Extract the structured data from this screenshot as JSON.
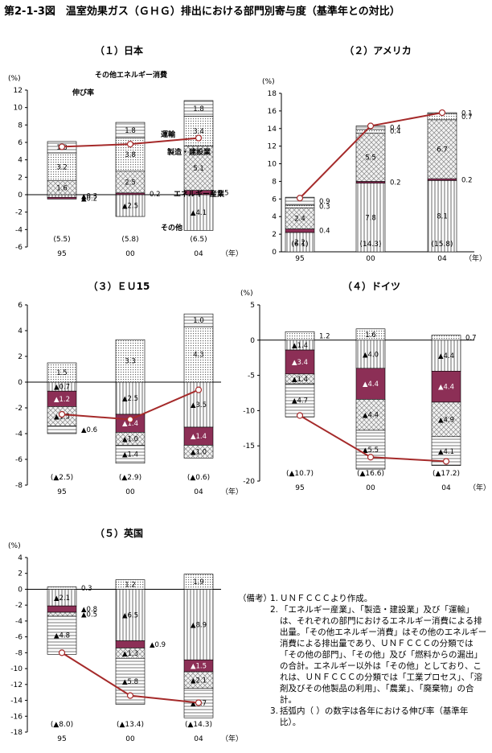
{
  "figure_title": "第2-1-3図　温室効果ガス（ＧＨＧ）排出における部門別寄与度（基準年との対比）",
  "colors": {
    "energy_industry": "#8c2f56",
    "line": "#a52a2a",
    "marker_fill": "#ffffff"
  },
  "legend_labels": [
    "伸び率",
    "その他エネルギー消費",
    "運輸",
    "製造・建設業",
    "エネルギー産業",
    "その他"
  ],
  "notes": {
    "heading": "（備考）",
    "items": [
      "ＵＮＦＣＣＣより作成。",
      "「エネルギー産業」、「製造・建設業」及び「運輸」は、それぞれの部門におけるエネルギー消費による排出量。「その他エネルギー消費」はその他のエネルギー消費による排出量であり、ＵＮＦＣＣＣの分類では「その他の部門」、「その他」及び「燃料からの漏出」の合計。エネルギー以外は「その他」としており、これは、ＵＮＦＣＣＣの分類では「工業プロセス」、「溶剤及びその他製品の利用」、「農業」、「廃棄物」の合計。",
      "括弧内（ ）の数字は各年における伸び率（基準年比）。"
    ]
  },
  "chart_data": [
    {
      "title": "（１）日本",
      "type": "bar",
      "categories": [
        "95",
        "00",
        "04"
      ],
      "year_label": "（年）",
      "y_unit": "(%)",
      "ylim": [
        -6,
        12
      ],
      "yticks": [
        -6,
        -4,
        -2,
        0,
        2,
        4,
        6,
        8,
        10,
        12
      ],
      "series": [
        {
          "name": "その他",
          "values": [
            -0.3,
            -2.5,
            -4.1
          ],
          "labels": [
            "▲0.3",
            "▲2.5",
            "▲4.1"
          ]
        },
        {
          "name": "エネルギー産業",
          "values": [
            -0.2,
            0.2,
            0.5
          ],
          "labels": [
            "▲0.2",
            "0.2",
            "0.5"
          ]
        },
        {
          "name": "製造・建設業",
          "values": [
            1.6,
            2.5,
            5.1
          ],
          "labels": [
            "1.6",
            "2.5",
            "5.1"
          ]
        },
        {
          "name": "運輸",
          "values": [
            3.2,
            3.8,
            3.4
          ],
          "labels": [
            "3.2",
            "3.8",
            "3.4"
          ]
        },
        {
          "name": "その他エネルギー消費",
          "values": [
            1.3,
            1.8,
            1.8
          ],
          "labels": [
            "1.3",
            "1.8",
            "1.8"
          ]
        }
      ],
      "growth": {
        "name": "伸び率",
        "values": [
          5.5,
          5.8,
          6.5
        ],
        "labels": [
          "(5.5)",
          "(5.8)",
          "(6.5)"
        ]
      }
    },
    {
      "title": "（２）アメリカ",
      "type": "bar",
      "categories": [
        "95",
        "00",
        "04"
      ],
      "year_label": "（年）",
      "y_unit": "(%)",
      "ylim": [
        0,
        18
      ],
      "yticks": [
        0,
        2,
        4,
        6,
        8,
        10,
        12,
        14,
        16,
        18
      ],
      "series": [
        {
          "name": "その他",
          "values": [
            2.2,
            7.8,
            8.1
          ],
          "labels": [
            "2.2",
            "7.8",
            "8.1"
          ]
        },
        {
          "name": "エネルギー産業",
          "values": [
            0.4,
            0.2,
            0.2
          ],
          "labels": [
            "0.4",
            "0.2",
            "0.2"
          ]
        },
        {
          "name": "製造・建設業",
          "values": [
            2.4,
            5.5,
            6.7
          ],
          "labels": [
            "2.4",
            "5.5",
            "6.7"
          ]
        },
        {
          "name": "運輸",
          "values": [
            0.3,
            0.4,
            0.7
          ],
          "labels": [
            "0.3",
            "0.4",
            "0.7"
          ]
        },
        {
          "name": "その他エネルギー消費",
          "values": [
            0.9,
            0.4,
            0.1
          ],
          "labels": [
            "0.9",
            "0.4",
            "0.1"
          ]
        }
      ],
      "growth": {
        "name": "伸び率",
        "values": [
          6.1,
          14.3,
          15.8
        ],
        "labels": [
          "(6.1)",
          "(14.3)",
          "(15.8)"
        ]
      }
    },
    {
      "title": "（３）ＥＵ15",
      "type": "bar",
      "categories": [
        "95",
        "00",
        "04"
      ],
      "year_label": "（年）",
      "y_unit": "",
      "ylim": [
        -8,
        6
      ],
      "yticks": [
        -8,
        -6,
        -4,
        -2,
        0,
        2,
        4,
        6
      ],
      "series": [
        {
          "name": "その他",
          "values": [
            -0.7,
            -2.5,
            -3.5
          ],
          "labels": [
            "▲0.7",
            "▲2.5",
            "▲3.5"
          ]
        },
        {
          "name": "エネルギー産業",
          "values": [
            -1.2,
            -1.4,
            -1.4
          ],
          "labels": [
            "▲1.2",
            "▲1.4",
            "▲1.4"
          ]
        },
        {
          "name": "製造・建設業",
          "values": [
            -1.5,
            -1.0,
            -1.0
          ],
          "labels": [
            "▲1.5",
            "▲1.0",
            "▲1.0"
          ]
        },
        {
          "name": "運輸",
          "values": [
            1.5,
            3.3,
            4.3
          ],
          "labels": [
            "1.5",
            "3.3",
            "4.3"
          ]
        },
        {
          "name": "その他エネルギー消費",
          "values": [
            -0.6,
            -1.4,
            1.0
          ],
          "labels": [
            "▲0.6",
            "▲1.4",
            "1.0"
          ]
        }
      ],
      "growth": {
        "name": "伸び率",
        "values": [
          -2.5,
          -2.9,
          -0.6
        ],
        "labels": [
          "(▲2.5)",
          "(▲2.9)",
          "(▲0.6)"
        ]
      }
    },
    {
      "title": "（４）ドイツ",
      "type": "bar",
      "categories": [
        "95",
        "00",
        "04"
      ],
      "year_label": "（年）",
      "y_unit": "(%)",
      "ylim": [
        -20,
        5
      ],
      "yticks": [
        -20,
        -15,
        -10,
        -5,
        0,
        5
      ],
      "series": [
        {
          "name": "その他",
          "values": [
            -1.4,
            -4.0,
            -4.4
          ],
          "labels": [
            "▲1.4",
            "▲4.0",
            "▲4.4"
          ]
        },
        {
          "name": "エネルギー産業",
          "values": [
            -3.4,
            -4.4,
            -4.4
          ],
          "labels": [
            "▲3.4",
            "▲4.4",
            "▲4.4"
          ]
        },
        {
          "name": "製造・建設業",
          "values": [
            -1.4,
            -4.4,
            -4.9
          ],
          "labels": [
            "▲1.4",
            "▲4.4",
            "▲4.9"
          ]
        },
        {
          "name": "運輸",
          "values": [
            1.2,
            1.6,
            0.7
          ],
          "labels": [
            "1.2",
            "1.6",
            "0.7"
          ]
        },
        {
          "name": "その他エネルギー消費",
          "values": [
            -4.7,
            -5.5,
            -4.1
          ],
          "labels": [
            "▲4.7",
            "▲5.5",
            "▲4.1"
          ]
        }
      ],
      "growth": {
        "name": "伸び率",
        "values": [
          -10.7,
          -16.6,
          -17.2
        ],
        "labels": [
          "(▲10.7)",
          "(▲16.6)",
          "(▲17.2)"
        ]
      }
    },
    {
      "title": "（５）英国",
      "type": "bar",
      "categories": [
        "95",
        "00",
        "04"
      ],
      "year_label": "（年）",
      "y_unit": "(%)",
      "ylim": [
        -18,
        4
      ],
      "yticks": [
        -18,
        -16,
        -14,
        -12,
        -10,
        -8,
        -6,
        -4,
        -2,
        0,
        2,
        4
      ],
      "series": [
        {
          "name": "その他",
          "values": [
            -2.1,
            -6.5,
            -8.9
          ],
          "labels": [
            "▲2.1",
            "▲6.5",
            "▲8.9"
          ]
        },
        {
          "name": "エネルギー産業",
          "values": [
            -0.8,
            -0.9,
            -1.5
          ],
          "labels": [
            "▲0.8",
            "▲0.9",
            "▲1.5"
          ]
        },
        {
          "name": "製造・建設業",
          "values": [
            -0.5,
            -1.3,
            -2.1
          ],
          "labels": [
            "▲0.5",
            "▲1.3",
            "▲2.1"
          ]
        },
        {
          "name": "運輸",
          "values": [
            0.3,
            1.2,
            1.9
          ],
          "labels": [
            "0.3",
            "1.2",
            "1.9"
          ]
        },
        {
          "name": "その他エネルギー消費",
          "values": [
            -4.8,
            -5.8,
            -3.7
          ],
          "labels": [
            "▲4.8",
            "▲5.8",
            "▲3.7"
          ]
        }
      ],
      "growth": {
        "name": "伸び率",
        "values": [
          -8.0,
          -13.4,
          -14.3
        ],
        "labels": [
          "(▲8.0)",
          "(▲13.4)",
          "(▲14.3)"
        ]
      }
    }
  ]
}
